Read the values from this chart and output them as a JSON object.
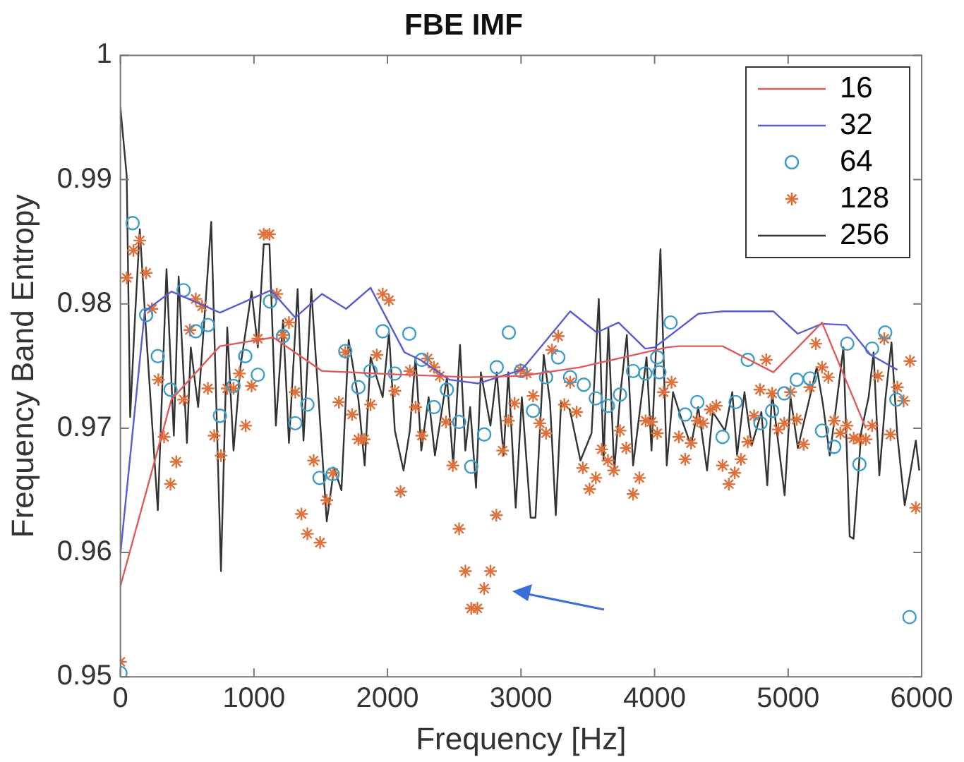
{
  "chart_data": {
    "type": "line",
    "title": "FBE IMF",
    "xlabel": "Frequency [Hz]",
    "ylabel": "Frequency Band Entropy",
    "xlim": [
      0,
      6000
    ],
    "xticks": [
      0,
      1000,
      2000,
      3000,
      4000,
      5000,
      6000
    ],
    "ylim": [
      0.95,
      1
    ],
    "yticks": [
      0.95,
      0.96,
      0.97,
      0.98,
      0.99,
      1
    ],
    "grid": false,
    "legend": "top right",
    "series": [
      {
        "name": "16",
        "marker": "none",
        "color": "#e05a5a",
        "x": [
          0,
          382,
          745,
          1145,
          1509,
          2127,
          2608,
          3006,
          3440,
          4092,
          4182,
          4509,
          4890,
          5254,
          5582
        ],
        "values": [
          0.9573,
          0.9723,
          0.9766,
          0.9773,
          0.9746,
          0.9743,
          0.9741,
          0.9742,
          0.9749,
          0.9765,
          0.9766,
          0.9766,
          0.9745,
          0.9785,
          0.97
        ]
      },
      {
        "name": "32",
        "marker": "none",
        "color": "#5b5bd0",
        "x": [
          0,
          182,
          382,
          745,
          1127,
          1309,
          1509,
          1690,
          1873,
          2127,
          2246,
          2463,
          2680,
          3006,
          3368,
          3567,
          3730,
          3930,
          4000,
          4327,
          4509,
          4890,
          5072,
          5254,
          5436,
          5618,
          5818
        ],
        "values": [
          0.9599,
          0.9794,
          0.981,
          0.9793,
          0.9811,
          0.9789,
          0.9808,
          0.9796,
          0.9813,
          0.9761,
          0.9755,
          0.9739,
          0.9736,
          0.9747,
          0.9794,
          0.9777,
          0.9785,
          0.9764,
          0.9765,
          0.9792,
          0.9794,
          0.9794,
          0.9776,
          0.9784,
          0.9783,
          0.9759,
          0.9747
        ]
      },
      {
        "name": "64",
        "type": "scatter",
        "marker": "circle",
        "color": "#3d9cc8",
        "x": [
          0,
          91,
          193,
          280,
          375,
          473,
          564,
          655,
          745,
          847,
          935,
          1029,
          1120,
          1218,
          1309,
          1400,
          1491,
          1589,
          1684,
          1782,
          1873,
          1964,
          2055,
          2163,
          2257,
          2348,
          2445,
          2536,
          2627,
          2724,
          2818,
          2909,
          2999,
          3090,
          3187,
          3278,
          3368,
          3470,
          3560,
          3651,
          3741,
          3839,
          3930,
          4020,
          4036,
          4120,
          4229,
          4320,
          4509,
          4607,
          4698,
          4793,
          4880,
          4971,
          5065,
          5163,
          5254,
          5345,
          5443,
          5534,
          5629,
          5727,
          5811,
          5909
        ],
        "values": [
          0.9503,
          0.9865,
          0.9791,
          0.9758,
          0.9731,
          0.9811,
          0.9778,
          0.9783,
          0.971,
          0.9734,
          0.9758,
          0.9743,
          0.9802,
          0.9774,
          0.9704,
          0.9719,
          0.966,
          0.9663,
          0.9762,
          0.9733,
          0.9746,
          0.9778,
          0.9744,
          0.9776,
          0.9755,
          0.9717,
          0.9731,
          0.9705,
          0.9669,
          0.9695,
          0.9749,
          0.9777,
          0.9746,
          0.9714,
          0.9741,
          0.9757,
          0.9741,
          0.9735,
          0.9724,
          0.9718,
          0.9727,
          0.9746,
          0.9744,
          0.9757,
          0.9745,
          0.9785,
          0.9711,
          0.9721,
          0.9693,
          0.9721,
          0.9755,
          0.9704,
          0.9714,
          0.9728,
          0.9739,
          0.974,
          0.9698,
          0.9685,
          0.9768,
          0.9671,
          0.9764,
          0.9777,
          0.9723,
          0.9548
        ]
      },
      {
        "name": "128",
        "type": "scatter",
        "marker": "cross",
        "color": "#e0703a",
        "x": [
          0,
          47,
          98,
          145,
          193,
          236,
          284,
          327,
          375,
          418,
          473,
          520,
          564,
          611,
          655,
          702,
          753,
          800,
          847,
          891,
          938,
          982,
          1029,
          1073,
          1116,
          1171,
          1218,
          1262,
          1309,
          1356,
          1400,
          1447,
          1495,
          1545,
          1593,
          1636,
          1684,
          1735,
          1782,
          1825,
          1873,
          1920,
          1964,
          2011,
          2055,
          2098,
          2167,
          2210,
          2257,
          2300,
          2348,
          2391,
          2438,
          2489,
          2536,
          2583,
          2627,
          2673,
          2724,
          2771,
          2815,
          2862,
          2905,
          2952,
          2996,
          3043,
          3090,
          3140,
          3187,
          3231,
          3278,
          3325,
          3368,
          3416,
          3463,
          3513,
          3560,
          3604,
          3651,
          3694,
          3741,
          3788,
          3839,
          3886,
          3933,
          3977,
          4020,
          4067,
          4127,
          4182,
          4229,
          4273,
          4320,
          4364,
          4418,
          4462,
          4509,
          4556,
          4600,
          4647,
          4698,
          4745,
          4789,
          4836,
          4880,
          4927,
          4971,
          5018,
          5065,
          5116,
          5163,
          5207,
          5254,
          5301,
          5345,
          5392,
          5440,
          5491,
          5534,
          5582,
          5629,
          5672,
          5720,
          5767,
          5818,
          5865,
          5913,
          5956
        ],
        "values": [
          0.9512,
          0.9821,
          0.9843,
          0.9851,
          0.9825,
          0.9796,
          0.9739,
          0.9693,
          0.9655,
          0.9673,
          0.9723,
          0.9779,
          0.9804,
          0.9798,
          0.9732,
          0.9694,
          0.9678,
          0.9732,
          0.9732,
          0.9744,
          0.9702,
          0.9734,
          0.9772,
          0.9856,
          0.9856,
          0.9808,
          0.9775,
          0.9785,
          0.9729,
          0.9631,
          0.9615,
          0.9674,
          0.9608,
          0.9642,
          0.9664,
          0.9721,
          0.9761,
          0.9711,
          0.9691,
          0.9691,
          0.9719,
          0.9759,
          0.9808,
          0.9803,
          0.973,
          0.9649,
          0.9746,
          0.9717,
          0.9694,
          0.9756,
          0.9749,
          0.9742,
          0.9705,
          0.967,
          0.9619,
          0.9585,
          0.9555,
          0.9555,
          0.9571,
          0.9585,
          0.963,
          0.9682,
          0.9706,
          0.972,
          0.9747,
          0.9744,
          0.9726,
          0.9704,
          0.9696,
          0.9763,
          0.9774,
          0.9719,
          0.9737,
          0.9713,
          0.9668,
          0.9651,
          0.966,
          0.9683,
          0.9674,
          0.9666,
          0.9698,
          0.9684,
          0.9647,
          0.966,
          0.9706,
          0.9705,
          0.9696,
          0.9729,
          0.9737,
          0.9693,
          0.9675,
          0.9688,
          0.9706,
          0.9704,
          0.9715,
          0.9718,
          0.967,
          0.9655,
          0.9664,
          0.9675,
          0.9689,
          0.971,
          0.9731,
          0.9755,
          0.9728,
          0.9699,
          0.9704,
          0.9729,
          0.9707,
          0.9687,
          0.9733,
          0.9768,
          0.9749,
          0.9741,
          0.9706,
          0.9696,
          0.9702,
          0.9692,
          0.9691,
          0.9691,
          0.9702,
          0.9742,
          0.9772,
          0.9695,
          0.9733,
          0.9722,
          0.9754,
          0.9636
        ]
      },
      {
        "name": "256",
        "marker": "none",
        "color": "#333333",
        "x": [
          0,
          47,
          73,
          109,
          145,
          190,
          280,
          345,
          400,
          436,
          498,
          527,
          582,
          680,
          753,
          800,
          847,
          898,
          982,
          1029,
          1073,
          1116,
          1164,
          1218,
          1262,
          1327,
          1371,
          1429,
          1545,
          1600,
          1655,
          1709,
          1782,
          1829,
          1873,
          1964,
          2011,
          2055,
          2120,
          2167,
          2210,
          2253,
          2308,
          2355,
          2445,
          2492,
          2543,
          2583,
          2619,
          2663,
          2699,
          2771,
          2818,
          2869,
          2905,
          2960,
          3006,
          3072,
          3108,
          3170,
          3217,
          3260,
          3300,
          3365,
          3445,
          3528,
          3582,
          3618,
          3654,
          3698,
          3745,
          3792,
          3839,
          3893,
          3940,
          3977,
          4044,
          4091,
          4138,
          4200,
          4273,
          4327,
          4393,
          4436,
          4527,
          4582,
          4618,
          4673,
          4727,
          4800,
          4844,
          4880,
          4974,
          5018,
          5073,
          5167,
          5214,
          5261,
          5312,
          5359,
          5414,
          5461,
          5490,
          5549,
          5603,
          5640,
          5683,
          5730,
          5774,
          5818,
          5873,
          5956,
          5982
        ],
        "values": [
          0.9958,
          0.9903,
          0.9709,
          0.9789,
          0.986,
          0.9781,
          0.9634,
          0.9828,
          0.9694,
          0.9822,
          0.9688,
          0.9765,
          0.9717,
          0.9866,
          0.9585,
          0.9781,
          0.9682,
          0.9749,
          0.981,
          0.9765,
          0.9848,
          0.9848,
          0.9702,
          0.9787,
          0.9688,
          0.9812,
          0.969,
          0.9812,
          0.9625,
          0.9668,
          0.965,
          0.9771,
          0.9723,
          0.967,
          0.9757,
          0.9725,
          0.9777,
          0.9698,
          0.9666,
          0.9698,
          0.9757,
          0.9682,
          0.9725,
          0.9678,
          0.9741,
          0.967,
          0.9767,
          0.9682,
          0.9717,
          0.9652,
          0.9745,
          0.9702,
          0.9745,
          0.9678,
          0.9745,
          0.9636,
          0.9725,
          0.9628,
          0.9628,
          0.9759,
          0.9721,
          0.963,
          0.9721,
          0.9715,
          0.9674,
          0.9696,
          0.9804,
          0.9674,
          0.9781,
          0.9666,
          0.9729,
          0.9775,
          0.967,
          0.9717,
          0.9757,
          0.9682,
          0.9844,
          0.967,
          0.9729,
          0.9708,
          0.9686,
          0.9717,
          0.9666,
          0.9713,
          0.9698,
          0.9729,
          0.9678,
          0.9729,
          0.9686,
          0.9713,
          0.9654,
          0.9729,
          0.9646,
          0.9725,
          0.9684,
          0.9727,
          0.9749,
          0.9719,
          0.9678,
          0.9717,
          0.9765,
          0.9613,
          0.9611,
          0.9698,
          0.9725,
          0.9761,
          0.9662,
          0.9725,
          0.9769,
          0.9694,
          0.9638,
          0.969,
          0.9666
        ]
      }
    ]
  }
}
